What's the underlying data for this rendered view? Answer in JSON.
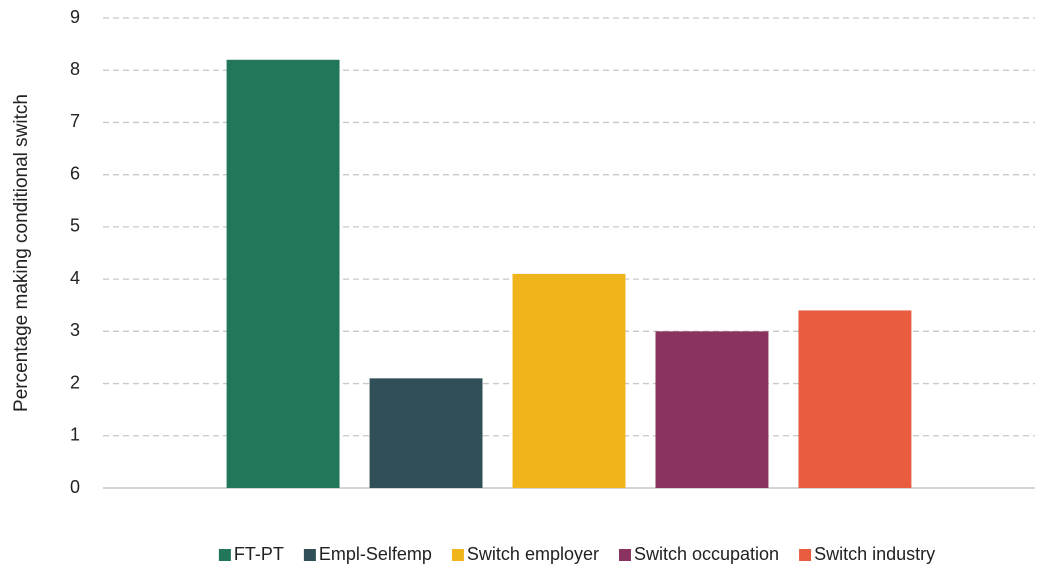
{
  "chart_data": {
    "type": "bar",
    "y_label": "Percentage making conditional switch",
    "categories": [
      null
    ],
    "series": [
      {
        "name": "FT-PT",
        "color": "#22775a",
        "values": [
          8.2
        ]
      },
      {
        "name": "Empl-Selfemp",
        "color": "#304f57",
        "values": [
          2.1
        ]
      },
      {
        "name": "Switch employer",
        "color": "#efb51b",
        "values": [
          4.1
        ]
      },
      {
        "name": "Switch occupation",
        "color": "#8a3360",
        "values": [
          3.0
        ]
      },
      {
        "name": "Switch industry",
        "color": "#ea5c40",
        "values": [
          3.4
        ]
      }
    ],
    "ylim": [
      0,
      9
    ],
    "yticks": [
      0,
      1,
      2,
      3,
      4,
      5,
      6,
      7,
      8,
      9
    ],
    "grid": true,
    "legend": "bottom"
  }
}
